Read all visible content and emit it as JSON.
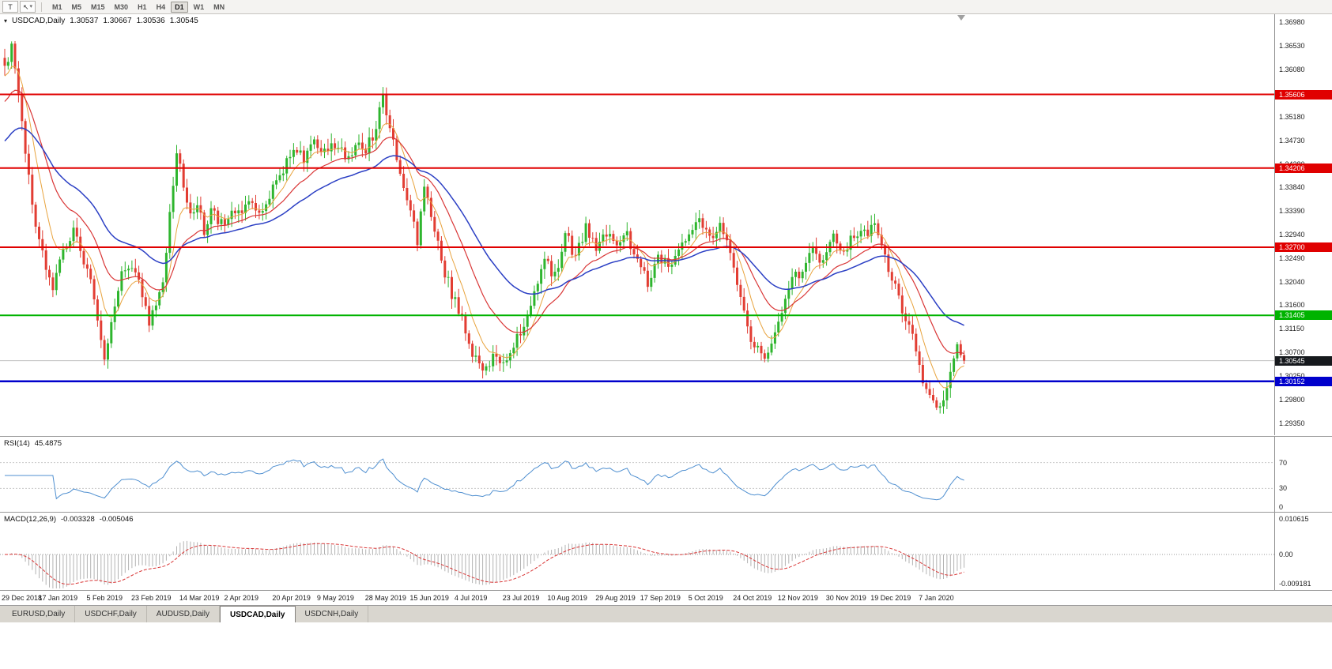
{
  "toolbar": {
    "text_tool_label": "T",
    "cursor_tool_icon": "↖",
    "dropdown_caret": "▾",
    "timeframes": [
      "M1",
      "M5",
      "M15",
      "M30",
      "H1",
      "H4",
      "D1",
      "W1",
      "MN"
    ],
    "active_timeframe": "D1"
  },
  "chart": {
    "header": {
      "symbol_caret": "▾",
      "title": "USDCAD,Daily",
      "open": "1.30537",
      "high": "1.30667",
      "low": "1.30536",
      "close": "1.30545"
    },
    "price_axis": {
      "ticks": [
        "1.36980",
        "1.36530",
        "1.36080",
        "1.35630",
        "1.35180",
        "1.34730",
        "1.34280",
        "1.33840",
        "1.33390",
        "1.32940",
        "1.32490",
        "1.32040",
        "1.31600",
        "1.31150",
        "1.30700",
        "1.30250",
        "1.29800",
        "1.29350"
      ]
    },
    "levels": [
      {
        "label": "1.35606",
        "price": 1.35606,
        "color": "#e00000",
        "type": "resistance",
        "width": 2
      },
      {
        "label": "1.34206",
        "price": 1.34206,
        "color": "#e00000",
        "type": "resistance",
        "width": 2
      },
      {
        "label": "1.32700",
        "price": 1.327,
        "color": "#e00000",
        "type": "resistance",
        "width": 2
      },
      {
        "label": "1.31405",
        "price": 1.31405,
        "color": "#00b300",
        "type": "support",
        "width": 2
      },
      {
        "label": "1.30152",
        "price": 1.30152,
        "color": "#0000cc",
        "type": "support",
        "width": 2.5
      }
    ],
    "bid": {
      "label": "1.30545",
      "price": 1.30545,
      "tag_color": "#16191d",
      "line_color": "#c0c0c0"
    },
    "dates": [
      "29 Dec 2018",
      "17 Jan 2019",
      "5 Feb 2019",
      "23 Feb 2019",
      "14 Mar 2019",
      "2 Apr 2019",
      "20 Apr 2019",
      "9 May 2019",
      "28 May 2019",
      "15 Jun 2019",
      "4 Jul 2019",
      "23 Jul 2019",
      "10 Aug 2019",
      "29 Aug 2019",
      "17 Sep 2019",
      "5 Oct 2019",
      "24 Oct 2019",
      "12 Nov 2019",
      "30 Nov 2019",
      "19 Dec 2019",
      "7 Jan 2020"
    ]
  },
  "rsi": {
    "label": "RSI(14)",
    "value": "45.4875",
    "line_color": "#4f8fd0",
    "levels": [
      70,
      30
    ],
    "axis_ticks": [
      {
        "label": "70",
        "value": 70
      },
      {
        "label": "30",
        "value": 30
      },
      {
        "label": "0",
        "value": 0
      }
    ]
  },
  "macd": {
    "label": "MACD(12,26,9)",
    "main_value": "-0.003328",
    "signal_value": "-0.005046",
    "hist_color": "#b3b3b3",
    "signal_color": "#d93636",
    "axis": {
      "top_label": "0.010615",
      "top_value": 0.010615,
      "zero_label": "0.00",
      "bottom_label": "-0.009181",
      "bottom_value": -0.009181
    }
  },
  "tabs": {
    "items": [
      "EURUSD,Daily",
      "USDCHF,Daily",
      "AUDUSD,Daily",
      "USDCAD,Daily",
      "USDCNH,Daily"
    ],
    "active_index": 3
  },
  "chart_data": {
    "type": "candlestick",
    "symbol": "USDCAD",
    "timeframe": "Daily",
    "bar_count": 280,
    "last_ohlc": {
      "open": 1.30537,
      "high": 1.30667,
      "low": 1.30536,
      "close": 1.30545
    },
    "y_axis_range": [
      1.2935,
      1.3698
    ],
    "up_color": "#2eb52e",
    "down_color": "#e23d33",
    "key_levels": [
      1.35606,
      1.34206,
      1.327,
      1.31405,
      1.30152
    ],
    "date_indices": [
      0,
      13,
      27,
      40,
      54,
      67,
      81,
      94,
      108,
      121,
      134,
      148,
      161,
      175,
      188,
      202,
      215,
      228,
      242,
      255,
      269
    ],
    "moving_averages": [
      {
        "name": "fast",
        "period": 8,
        "color": "#e8a33d",
        "width": 1,
        "seed": 1.359
      },
      {
        "name": "mid",
        "period": 20,
        "color": "#d93636",
        "width": 1.2,
        "seed": 1.354
      },
      {
        "name": "slow",
        "period": 42,
        "color": "#2b3fc4",
        "width": 1.5,
        "seed": 1.3465
      }
    ],
    "indicators": {
      "rsi_period": 14,
      "macd_params": [
        12,
        26,
        9
      ]
    },
    "price_path": [
      [
        0,
        1.3615
      ],
      [
        2,
        1.365
      ],
      [
        4,
        1.356
      ],
      [
        6,
        1.3455
      ],
      [
        9,
        1.33
      ],
      [
        12,
        1.3235
      ],
      [
        14,
        1.32
      ],
      [
        17,
        1.3265
      ],
      [
        20,
        1.33
      ],
      [
        23,
        1.3245
      ],
      [
        26,
        1.318
      ],
      [
        28,
        1.309
      ],
      [
        29,
        1.3068
      ],
      [
        31,
        1.313
      ],
      [
        34,
        1.3225
      ],
      [
        37,
        1.3235
      ],
      [
        40,
        1.318
      ],
      [
        42,
        1.3128
      ],
      [
        44,
        1.3155
      ],
      [
        46,
        1.3205
      ],
      [
        48,
        1.333
      ],
      [
        50,
        1.3448
      ],
      [
        52,
        1.339
      ],
      [
        54,
        1.3335
      ],
      [
        56,
        1.3348
      ],
      [
        58,
        1.3305
      ],
      [
        60,
        1.3342
      ],
      [
        63,
        1.3312
      ],
      [
        66,
        1.334
      ],
      [
        69,
        1.3335
      ],
      [
        72,
        1.3355
      ],
      [
        75,
        1.3332
      ],
      [
        78,
        1.338
      ],
      [
        81,
        1.3418
      ],
      [
        84,
        1.3465
      ],
      [
        87,
        1.3442
      ],
      [
        90,
        1.3478
      ],
      [
        93,
        1.3455
      ],
      [
        96,
        1.3468
      ],
      [
        99,
        1.3442
      ],
      [
        102,
        1.3462
      ],
      [
        105,
        1.345
      ],
      [
        108,
        1.3502
      ],
      [
        110,
        1.3558
      ],
      [
        112,
        1.3492
      ],
      [
        114,
        1.3442
      ],
      [
        116,
        1.3392
      ],
      [
        118,
        1.3335
      ],
      [
        120,
        1.3285
      ],
      [
        122,
        1.3385
      ],
      [
        124,
        1.333
      ],
      [
        126,
        1.3272
      ],
      [
        128,
        1.3222
      ],
      [
        130,
        1.3182
      ],
      [
        133,
        1.3132
      ],
      [
        136,
        1.3072
      ],
      [
        139,
        1.3042
      ],
      [
        142,
        1.3062
      ],
      [
        145,
        1.304
      ],
      [
        148,
        1.3082
      ],
      [
        151,
        1.3122
      ],
      [
        154,
        1.319
      ],
      [
        157,
        1.3242
      ],
      [
        160,
        1.3212
      ],
      [
        163,
        1.3298
      ],
      [
        166,
        1.3252
      ],
      [
        169,
        1.3308
      ],
      [
        172,
        1.3262
      ],
      [
        175,
        1.3298
      ],
      [
        178,
        1.3282
      ],
      [
        181,
        1.3292
      ],
      [
        184,
        1.3242
      ],
      [
        187,
        1.3202
      ],
      [
        190,
        1.3252
      ],
      [
        193,
        1.3232
      ],
      [
        196,
        1.3272
      ],
      [
        199,
        1.3302
      ],
      [
        202,
        1.3318
      ],
      [
        205,
        1.3292
      ],
      [
        208,
        1.3312
      ],
      [
        211,
        1.3252
      ],
      [
        214,
        1.3182
      ],
      [
        217,
        1.3092
      ],
      [
        220,
        1.3062
      ],
      [
        223,
        1.3082
      ],
      [
        226,
        1.3142
      ],
      [
        229,
        1.3202
      ],
      [
        232,
        1.3232
      ],
      [
        235,
        1.3268
      ],
      [
        238,
        1.3242
      ],
      [
        241,
        1.3288
      ],
      [
        244,
        1.3262
      ],
      [
        247,
        1.3298
      ],
      [
        250,
        1.3292
      ],
      [
        253,
        1.3312
      ],
      [
        255,
        1.3282
      ],
      [
        257,
        1.3232
      ],
      [
        259,
        1.3192
      ],
      [
        261,
        1.3142
      ],
      [
        263,
        1.3128
      ],
      [
        265,
        1.3082
      ],
      [
        267,
        1.3012
      ],
      [
        269,
        1.2978
      ],
      [
        271,
        1.2962
      ],
      [
        273,
        1.2988
      ],
      [
        275,
        1.3032
      ],
      [
        277,
        1.3078
      ],
      [
        279,
        1.30545
      ]
    ]
  }
}
